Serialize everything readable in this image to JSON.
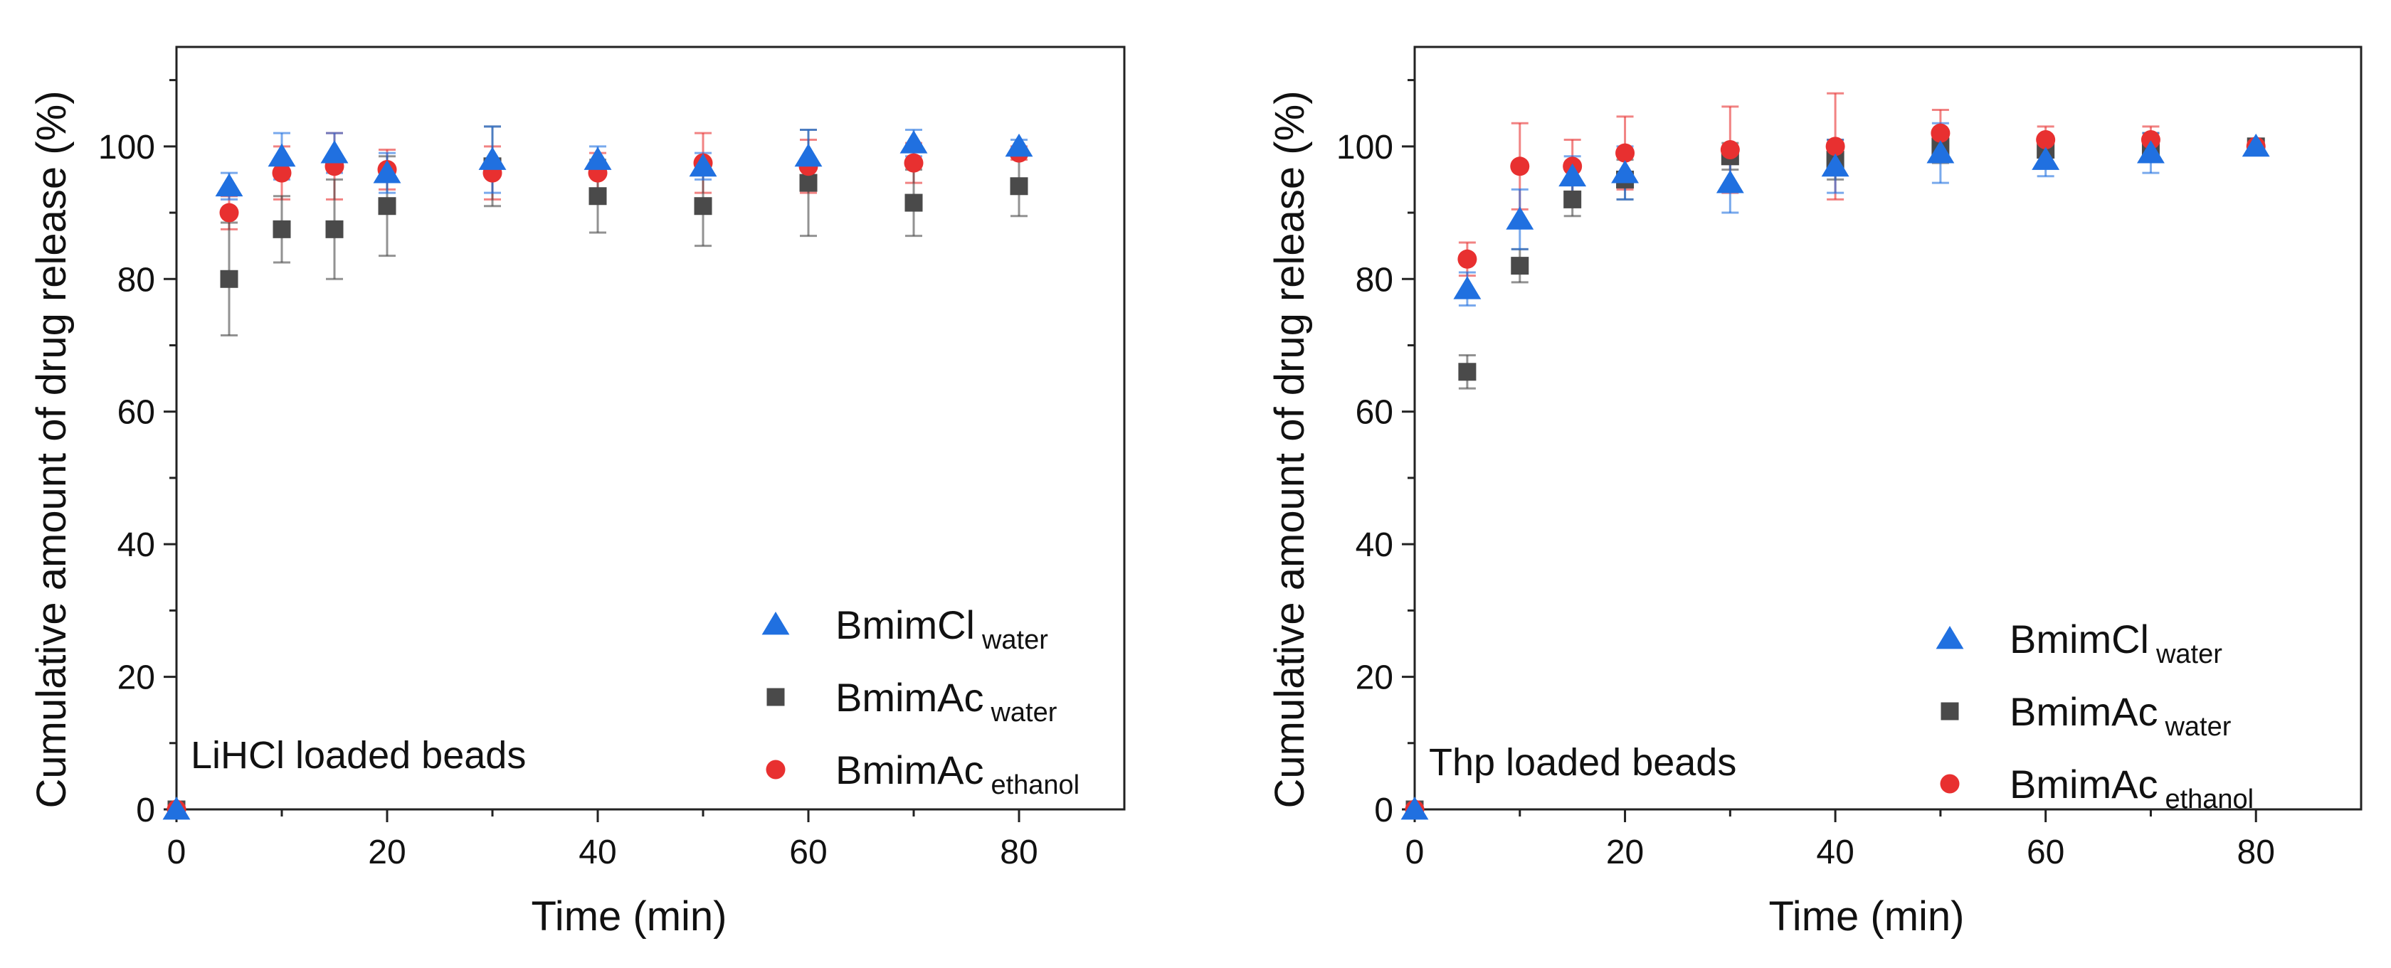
{
  "chart_data": [
    {
      "type": "scatter",
      "annotation": "LiHCl loaded beads",
      "xlabel": "Time (min)",
      "ylabel": "Cumulative amount of drug release (%)",
      "xlim": [
        0,
        90
      ],
      "ylim": [
        0,
        115
      ],
      "xticks": [
        "0",
        "20",
        "40",
        "60",
        "80"
      ],
      "yticks": [
        "0",
        "20",
        "40",
        "60",
        "80",
        "100"
      ],
      "legend_position": "bottom-right",
      "series": [
        {
          "name": "BmimCl",
          "subscript": "water",
          "marker": "triangle",
          "color": "#2070e0",
          "x": [
            0,
            5,
            10,
            15,
            20,
            30,
            40,
            50,
            60,
            70,
            80
          ],
          "y": [
            0,
            94,
            98.5,
            99,
            96,
            98,
            98,
            97,
            98.5,
            100.5,
            100
          ],
          "err": [
            0,
            2,
            3.5,
            3,
            3,
            5,
            2,
            2,
            4,
            2,
            1
          ]
        },
        {
          "name": "BmimAc",
          "subscript": "water",
          "marker": "square",
          "color": "#4a4a4a",
          "x": [
            0,
            5,
            10,
            15,
            20,
            30,
            40,
            50,
            60,
            70,
            80
          ],
          "y": [
            0,
            80,
            87.5,
            87.5,
            91,
            97,
            92.5,
            91,
            94.5,
            91.5,
            94
          ],
          "err": [
            0,
            8.5,
            5,
            7.5,
            7.5,
            6,
            5.5,
            6,
            8,
            5,
            4.5
          ]
        },
        {
          "name": "BmimAc",
          "subscript": "ethanol",
          "marker": "circle",
          "color": "#e83030",
          "x": [
            0,
            5,
            10,
            15,
            20,
            30,
            40,
            50,
            60,
            70,
            80
          ],
          "y": [
            0,
            90,
            96,
            97,
            96.5,
            96,
            96,
            97.5,
            97,
            97.5,
            99
          ],
          "err": [
            0,
            2.5,
            4,
            5,
            3,
            4,
            3,
            4.5,
            4,
            3,
            1
          ]
        }
      ]
    },
    {
      "type": "scatter",
      "annotation": "Thp loaded beads",
      "xlabel": "Time (min)",
      "ylabel": "Cumulative amount of drug release (%)",
      "xlim": [
        0,
        90
      ],
      "ylim": [
        0,
        115
      ],
      "xticks": [
        "0",
        "20",
        "40",
        "60",
        "80"
      ],
      "yticks": [
        "0",
        "20",
        "40",
        "60",
        "80",
        "100"
      ],
      "legend_position": "bottom-right",
      "series": [
        {
          "name": "BmimCl",
          "subscript": "water",
          "marker": "triangle",
          "color": "#2070e0",
          "x": [
            0,
            5,
            10,
            15,
            20,
            30,
            40,
            50,
            60,
            70,
            80
          ],
          "y": [
            0,
            78.5,
            89,
            95.5,
            96,
            94.5,
            97,
            99,
            98,
            99,
            100
          ],
          "err": [
            0,
            2.5,
            4.5,
            3,
            4,
            4.5,
            4,
            4.5,
            2.5,
            3,
            1
          ]
        },
        {
          "name": "BmimAc",
          "subscript": "water",
          "marker": "square",
          "color": "#4a4a4a",
          "x": [
            0,
            5,
            10,
            15,
            20,
            30,
            40,
            50,
            60,
            70,
            80
          ],
          "y": [
            0,
            66,
            82,
            92,
            95,
            98.5,
            98,
            100,
            99.5,
            100,
            100
          ],
          "err": [
            0,
            2.5,
            2.5,
            2.5,
            3,
            2,
            3,
            2.5,
            2,
            2,
            1
          ]
        },
        {
          "name": "BmimAc",
          "subscript": "ethanol",
          "marker": "circle",
          "color": "#e83030",
          "x": [
            0,
            5,
            10,
            15,
            20,
            30,
            40,
            50,
            60,
            70,
            80
          ],
          "y": [
            0,
            83,
            97,
            97,
            99,
            99.5,
            100,
            102,
            101,
            101,
            100
          ],
          "err": [
            0,
            2.5,
            6.5,
            4,
            5.5,
            6.5,
            8,
            3.5,
            2,
            2,
            1
          ]
        }
      ]
    }
  ]
}
